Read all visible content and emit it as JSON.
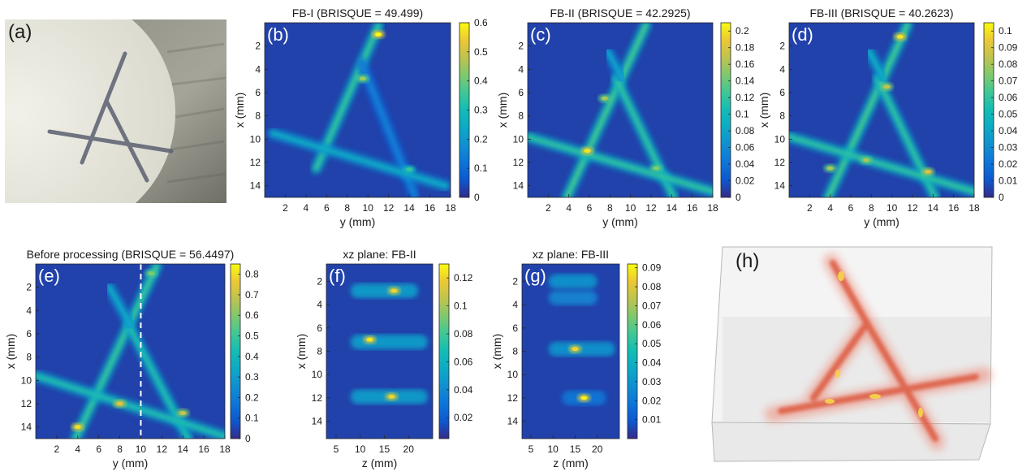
{
  "panels": {
    "a": {
      "label": "(a)"
    },
    "h": {
      "label": "(h)"
    }
  },
  "colors": {
    "parula_low": "#3d26a8",
    "parula_bg": "#3042c8",
    "parula_high": "#f9fb0e",
    "trace_3d": "#e05a3c",
    "dash": "#ffffff"
  },
  "chart_data": [
    {
      "id": "b",
      "label": "(b)",
      "type": "heatmap",
      "title": "FB-I (BRISQUE = 49.499)",
      "xlabel": "y (mm)",
      "ylabel": "x (mm)",
      "xlim": [
        0,
        18
      ],
      "ylim": [
        15,
        0
      ],
      "xticks": [
        2,
        4,
        6,
        8,
        10,
        12,
        14,
        16,
        18
      ],
      "yticks": [
        2,
        4,
        6,
        8,
        10,
        12,
        14
      ],
      "colorbar": {
        "min": 0,
        "max": 0.6,
        "ticks": [
          "0",
          "0.1",
          "0.2",
          "0.3",
          "0.4",
          "0.5",
          "0.6"
        ]
      },
      "strokes": [
        {
          "x1": 11.0,
          "y1": 0.3,
          "x2": 5.0,
          "y2": 12.5,
          "peak": 0.35
        },
        {
          "x1": 9.4,
          "y1": 3.5,
          "x2": 14.5,
          "y2": 14.8,
          "peak": 0.15
        },
        {
          "x1": 0.8,
          "y1": 9.5,
          "x2": 17.5,
          "y2": 14.0,
          "peak": 0.25
        }
      ],
      "spots": [
        {
          "x": 11.0,
          "y": 1.0,
          "v": 0.6
        },
        {
          "x": 9.5,
          "y": 4.8,
          "v": 0.45
        },
        {
          "x": 14.0,
          "y": 12.6,
          "v": 0.35
        }
      ]
    },
    {
      "id": "c",
      "label": "(c)",
      "type": "heatmap",
      "title": "FB-II (BRISQUE = 42.2925)",
      "xlabel": "y (mm)",
      "ylabel": "x (mm)",
      "xlim": [
        0,
        18
      ],
      "ylim": [
        15,
        0
      ],
      "xticks": [
        2,
        4,
        6,
        8,
        10,
        12,
        14,
        16,
        18
      ],
      "yticks": [
        2,
        4,
        6,
        8,
        10,
        12,
        14
      ],
      "colorbar": {
        "min": 0,
        "max": 0.21,
        "ticks": [
          "0",
          "0.02",
          "0.04",
          "0.06",
          "0.08",
          "0.1",
          "0.12",
          "0.14",
          "0.16",
          "0.18",
          "0.2"
        ]
      },
      "strokes": [
        {
          "x1": 11.5,
          "y1": 0.2,
          "x2": 3.8,
          "y2": 15.0,
          "peak": 0.13
        },
        {
          "x1": 8.6,
          "y1": 4.8,
          "x2": 14.2,
          "y2": 15.0,
          "peak": 0.12
        },
        {
          "x1": 0.0,
          "y1": 9.8,
          "x2": 18.0,
          "y2": 14.5,
          "peak": 0.12
        },
        {
          "x1": 7.8,
          "y1": 2.5,
          "x2": 9.2,
          "y2": 4.8,
          "peak": 0.08
        }
      ],
      "spots": [
        {
          "x": 5.8,
          "y": 11.0,
          "v": 0.2
        },
        {
          "x": 7.5,
          "y": 6.5,
          "v": 0.16
        },
        {
          "x": 12.5,
          "y": 12.5,
          "v": 0.15
        }
      ]
    },
    {
      "id": "d",
      "label": "(d)",
      "type": "heatmap",
      "title": "FB-III (BRISQUE = 40.2623)",
      "xlabel": "y (mm)",
      "ylabel": "x (mm)",
      "xlim": [
        0,
        18
      ],
      "ylim": [
        15,
        0
      ],
      "xticks": [
        2,
        4,
        6,
        8,
        10,
        12,
        14,
        16,
        18
      ],
      "yticks": [
        2,
        4,
        6,
        8,
        10,
        12,
        14
      ],
      "colorbar": {
        "min": 0,
        "max": 0.105,
        "ticks": [
          "0",
          "0.01",
          "0.02",
          "0.03",
          "0.04",
          "0.05",
          "0.06",
          "0.07",
          "0.08",
          "0.09",
          "0.1"
        ]
      },
      "strokes": [
        {
          "x1": 11.5,
          "y1": 0.2,
          "x2": 3.8,
          "y2": 15.0,
          "peak": 0.065
        },
        {
          "x1": 8.6,
          "y1": 4.8,
          "x2": 14.2,
          "y2": 15.0,
          "peak": 0.06
        },
        {
          "x1": 0.0,
          "y1": 9.8,
          "x2": 18.0,
          "y2": 14.5,
          "peak": 0.06
        },
        {
          "x1": 7.8,
          "y1": 2.5,
          "x2": 9.2,
          "y2": 4.8,
          "peak": 0.045
        }
      ],
      "spots": [
        {
          "x": 10.8,
          "y": 1.2,
          "v": 0.1
        },
        {
          "x": 9.5,
          "y": 5.5,
          "v": 0.085
        },
        {
          "x": 13.5,
          "y": 12.8,
          "v": 0.09
        },
        {
          "x": 7.5,
          "y": 11.8,
          "v": 0.08
        },
        {
          "x": 4.0,
          "y": 12.5,
          "v": 0.08
        }
      ]
    },
    {
      "id": "e",
      "label": "(e)",
      "type": "heatmap",
      "title": "Before processing (BRISQUE = 56.4497)",
      "xlabel": "y (mm)",
      "ylabel": "x (mm)",
      "xlim": [
        0,
        18
      ],
      "ylim": [
        15,
        0
      ],
      "xticks": [
        2,
        4,
        6,
        8,
        10,
        12,
        14,
        16,
        18
      ],
      "yticks": [
        2,
        4,
        6,
        8,
        10,
        12,
        14
      ],
      "colorbar": {
        "min": 0,
        "max": 0.85,
        "ticks": [
          "0",
          "0.1",
          "0.2",
          "0.3",
          "0.4",
          "0.5",
          "0.6",
          "0.7",
          "0.8"
        ]
      },
      "dashed_line_y": 10,
      "strokes": [
        {
          "x1": 11.5,
          "y1": 0.2,
          "x2": 3.8,
          "y2": 15.0,
          "peak": 0.5
        },
        {
          "x1": 8.8,
          "y1": 5.2,
          "x2": 14.5,
          "y2": 15.0,
          "peak": 0.45
        },
        {
          "x1": 0.0,
          "y1": 9.6,
          "x2": 18.0,
          "y2": 14.8,
          "peak": 0.45
        },
        {
          "x1": 7.0,
          "y1": 2.0,
          "x2": 9.0,
          "y2": 5.2,
          "peak": 0.35
        }
      ],
      "spots": [
        {
          "x": 4.0,
          "y": 14.0,
          "v": 0.8
        },
        {
          "x": 8.0,
          "y": 12.0,
          "v": 0.75
        },
        {
          "x": 14.0,
          "y": 12.8,
          "v": 0.7
        },
        {
          "x": 11.0,
          "y": 0.8,
          "v": 0.6
        }
      ]
    },
    {
      "id": "f",
      "label": "(f)",
      "type": "heatmap",
      "title": "xz plane: FB-II",
      "xlabel": "z (mm)",
      "ylabel": "x (mm)",
      "xlim": [
        3,
        25
      ],
      "ylim": [
        15.5,
        0.5
      ],
      "xticks": [
        5,
        10,
        15,
        20
      ],
      "yticks": [
        2,
        4,
        6,
        8,
        10,
        12,
        14
      ],
      "colorbar": {
        "min": 0.005,
        "max": 0.13,
        "ticks": [
          "0.02",
          "0.04",
          "0.06",
          "0.08",
          "0.1",
          "0.12"
        ]
      },
      "bands": [
        {
          "y": 2.8,
          "x1": 8,
          "x2": 22,
          "peak": 0.05
        },
        {
          "y": 7.2,
          "x1": 8,
          "x2": 24,
          "peak": 0.05
        },
        {
          "y": 11.9,
          "x1": 8,
          "x2": 24,
          "peak": 0.05
        }
      ],
      "spots": [
        {
          "x": 17.0,
          "y": 2.8,
          "v": 0.12
        },
        {
          "x": 12.0,
          "y": 7.0,
          "v": 0.125
        },
        {
          "x": 16.5,
          "y": 11.9,
          "v": 0.12
        }
      ]
    },
    {
      "id": "g",
      "label": "(g)",
      "type": "heatmap",
      "title": "xz plane: FB-III",
      "xlabel": "z (mm)",
      "ylabel": "x (mm)",
      "xlim": [
        3,
        25
      ],
      "ylim": [
        15.5,
        0.5
      ],
      "xticks": [
        5,
        10,
        15,
        20
      ],
      "yticks": [
        2,
        4,
        6,
        8,
        10,
        12,
        14
      ],
      "colorbar": {
        "min": 0.0,
        "max": 0.092,
        "ticks": [
          "0.01",
          "0.02",
          "0.03",
          "0.04",
          "0.05",
          "0.06",
          "0.07",
          "0.08",
          "0.09"
        ]
      },
      "bands": [
        {
          "y": 2.0,
          "x1": 9,
          "x2": 20,
          "peak": 0.03
        },
        {
          "y": 3.4,
          "x1": 9,
          "x2": 20,
          "peak": 0.025
        },
        {
          "y": 7.8,
          "x1": 9,
          "x2": 24,
          "peak": 0.03
        },
        {
          "y": 12.0,
          "x1": 12,
          "x2": 22,
          "peak": 0.02
        }
      ],
      "spots": [
        {
          "x": 15.0,
          "y": 7.8,
          "v": 0.085
        },
        {
          "x": 17.0,
          "y": 12.0,
          "v": 0.09
        }
      ]
    }
  ]
}
